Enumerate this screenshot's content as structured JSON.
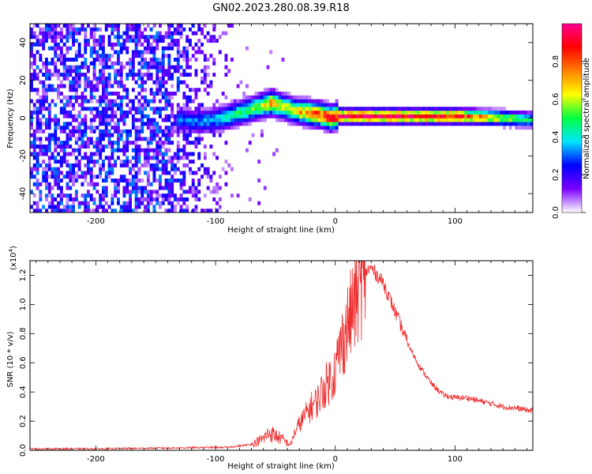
{
  "figure": {
    "title": "GN02.2023.280.08.39.R18"
  },
  "colorbar": {
    "label": "Normalized spectral amplitude",
    "ticks": [
      "0.0",
      "0.2",
      "0.4",
      "0.6",
      "0.8"
    ],
    "tick_values": [
      0.0,
      0.2,
      0.4,
      0.6,
      0.8
    ],
    "range": [
      0,
      1
    ],
    "stops": [
      "#ffffff",
      "#7a00ff",
      "#0000ff",
      "#00e5ff",
      "#00ff40",
      "#ffff00",
      "#ff8000",
      "#ff0000",
      "#ff0090"
    ]
  },
  "chart_data": [
    {
      "type": "heatmap",
      "name": "spectrogram",
      "xlabel": "Height of straight line (km)",
      "ylabel": "Frequency (Hz)",
      "xlim": [
        -255,
        165
      ],
      "ylim": [
        -50,
        50
      ],
      "xticks": [
        -200,
        -100,
        0,
        100
      ],
      "xtick_labels": [
        "-200",
        "-100",
        "0",
        "100"
      ],
      "yticks": [
        -40,
        -20,
        0,
        20,
        40
      ],
      "ytick_labels": [
        "-40",
        "-20",
        "0",
        "20",
        "40"
      ],
      "ridge": {
        "x": [
          -130,
          -115,
          -105,
          -95,
          -85,
          -75,
          -65,
          -55,
          -45,
          -35,
          -25,
          -15,
          -5,
          0,
          10,
          30,
          60,
          100,
          140,
          165
        ],
        "y": [
          -2,
          -3,
          -2,
          -1,
          1,
          3,
          5,
          7,
          5,
          3,
          2,
          1,
          -1,
          0,
          0,
          0,
          0,
          0,
          -1,
          -2
        ],
        "amplitude": [
          0.3,
          0.32,
          0.35,
          0.4,
          0.45,
          0.5,
          0.55,
          0.72,
          0.62,
          0.6,
          0.78,
          0.82,
          0.86,
          0.9,
          0.95,
          0.95,
          0.95,
          0.9,
          0.6,
          0.45
        ]
      },
      "noise_region_x": [
        -255,
        -90
      ]
    },
    {
      "type": "line",
      "name": "snr",
      "xlabel": "Height of straight line (km)",
      "ylabel": "SNR (10 * v/v)",
      "scale_label": "(x10",
      "scale_exponent": "4",
      "scale_suffix": ")",
      "xlim": [
        -255,
        165
      ],
      "ylim": [
        0,
        1.3
      ],
      "xticks": [
        -200,
        -100,
        0,
        100
      ],
      "xtick_labels": [
        "-200",
        "-100",
        "0",
        "100"
      ],
      "yticks": [
        0,
        0.2,
        0.4,
        0.6,
        0.8,
        1.0,
        1.2
      ],
      "ytick_labels": [
        "0.0",
        "0.2",
        "0.4",
        "0.6",
        "0.8",
        "1.0",
        "1.2"
      ],
      "color": "#ee3030",
      "series": [
        {
          "name": "SNR",
          "x": [
            -255,
            -200,
            -150,
            -100,
            -90,
            -70,
            -60,
            -55,
            -50,
            -45,
            -40,
            -37,
            -35,
            -30,
            -25,
            -20,
            -15,
            -10,
            -5,
            0,
            5,
            10,
            15,
            20,
            25,
            30,
            35,
            40,
            45,
            50,
            55,
            60,
            70,
            80,
            90,
            100,
            110,
            120,
            130,
            140,
            150,
            165
          ],
          "y": [
            0.01,
            0.01,
            0.015,
            0.02,
            0.02,
            0.04,
            0.08,
            0.12,
            0.1,
            0.08,
            0.05,
            0.04,
            0.1,
            0.18,
            0.24,
            0.3,
            0.34,
            0.42,
            0.48,
            0.55,
            0.72,
            0.85,
            0.98,
            1.12,
            1.22,
            1.25,
            1.2,
            1.15,
            1.05,
            0.95,
            0.85,
            0.74,
            0.58,
            0.46,
            0.38,
            0.36,
            0.36,
            0.34,
            0.32,
            0.3,
            0.29,
            0.27
          ]
        }
      ]
    }
  ]
}
